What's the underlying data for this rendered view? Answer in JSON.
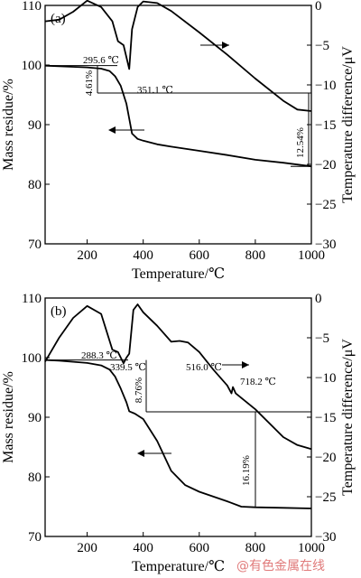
{
  "watermark": "@有色金属在线",
  "chart_data": [
    {
      "type": "line",
      "panel_label": "(a)",
      "xlabel": "Temperature/℃",
      "ylabel_left": "Mass residue/%",
      "ylabel_right": "Temperature difference/μV",
      "xlim": [
        50,
        1000
      ],
      "ylim_left": [
        70,
        110
      ],
      "ylim_right": [
        -30,
        0
      ],
      "x_ticks": [
        200,
        400,
        600,
        800,
        1000
      ],
      "y_ticks_left": [
        70,
        80,
        90,
        100,
        110
      ],
      "y_ticks_right": [
        0,
        -5,
        -10,
        -15,
        -20,
        -25,
        -30
      ],
      "series": [
        {
          "axis": "left",
          "x": [
            50,
            100,
            150,
            200,
            250,
            280,
            300,
            320,
            340,
            360,
            380,
            400,
            450,
            500,
            600,
            700,
            800,
            900,
            1000
          ],
          "y": [
            99.9,
            99.8,
            99.7,
            99.6,
            99.4,
            99.0,
            98.1,
            96.5,
            93.5,
            88.5,
            87.6,
            87.3,
            86.7,
            86.3,
            85.6,
            84.9,
            84.1,
            83.6,
            83.0
          ]
        },
        {
          "axis": "right",
          "x": [
            50,
            100,
            150,
            200,
            250,
            290,
            310,
            330,
            350,
            360,
            380,
            400,
            450,
            500,
            600,
            700,
            800,
            900,
            950,
            1000
          ],
          "y": [
            -2.0,
            -1.8,
            -0.8,
            0.6,
            -0.2,
            -2.0,
            -4.5,
            -5.0,
            -8.0,
            -3.0,
            -0.2,
            0.5,
            0.3,
            -0.7,
            -3.4,
            -6.2,
            -9.2,
            -12.0,
            -13.1,
            -13.3
          ]
        }
      ],
      "annotations": [
        "295.6 ℃",
        "351.1 ℃",
        "4.61%",
        "12.54%"
      ]
    },
    {
      "type": "line",
      "panel_label": "(b)",
      "xlabel": "Temperature/℃",
      "ylabel_left": "Mass residue/%",
      "ylabel_right": "Temperature difference/μV",
      "xlim": [
        50,
        1000
      ],
      "ylim_left": [
        70,
        110
      ],
      "ylim_right": [
        -30,
        0
      ],
      "x_ticks": [
        200,
        400,
        600,
        800,
        1000
      ],
      "y_ticks_left": [
        70,
        80,
        90,
        100,
        110
      ],
      "y_ticks_right": [
        0,
        -5,
        -10,
        -15,
        -20,
        -25,
        -30
      ],
      "series": [
        {
          "axis": "left",
          "x": [
            50,
            100,
            150,
            200,
            250,
            280,
            300,
            320,
            340,
            350,
            370,
            400,
            450,
            500,
            550,
            600,
            700,
            750,
            800,
            900,
            1000
          ],
          "y": [
            99.6,
            99.5,
            99.3,
            99.1,
            98.7,
            98.0,
            96.8,
            94.8,
            92.5,
            91.0,
            90.6,
            89.7,
            86.0,
            81.0,
            78.6,
            77.5,
            75.9,
            75.0,
            74.9,
            74.8,
            74.7
          ]
        },
        {
          "axis": "right",
          "x": [
            50,
            100,
            150,
            200,
            250,
            290,
            310,
            330,
            340,
            350,
            365,
            380,
            400,
            450,
            500,
            530,
            560,
            600,
            650,
            700,
            715,
            720,
            730,
            800,
            900,
            950,
            1000
          ],
          "y": [
            -8.0,
            -5.0,
            -2.5,
            -1.0,
            -2.0,
            -6.5,
            -6.8,
            -8.2,
            -7.5,
            -7.0,
            -1.5,
            -0.8,
            -1.8,
            -3.5,
            -5.5,
            -5.4,
            -5.6,
            -6.8,
            -9.0,
            -11.0,
            -12.0,
            -11.2,
            -12.0,
            -14.0,
            -17.5,
            -18.5,
            -19.0
          ]
        }
      ],
      "annotations": [
        "288.3 ℃",
        "339.5 ℃",
        "516.0 ℃",
        "718.2 ℃",
        "8.76%",
        "16.19%"
      ]
    }
  ]
}
